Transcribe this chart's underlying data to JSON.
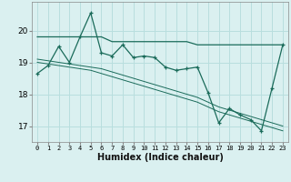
{
  "xlabel": "Humidex (Indice chaleur)",
  "x": [
    0,
    1,
    2,
    3,
    4,
    5,
    6,
    7,
    8,
    9,
    10,
    11,
    12,
    13,
    14,
    15,
    16,
    17,
    18,
    19,
    20,
    21,
    22,
    23
  ],
  "line_main": [
    18.65,
    18.9,
    19.5,
    19.0,
    19.8,
    20.55,
    19.3,
    19.2,
    19.55,
    19.15,
    19.2,
    19.15,
    18.85,
    18.75,
    18.8,
    18.85,
    18.05,
    17.1,
    17.55,
    17.35,
    17.2,
    16.85,
    18.2,
    19.55
  ],
  "line_max": [
    19.8,
    19.8,
    19.8,
    19.8,
    19.8,
    19.8,
    19.8,
    19.65,
    19.65,
    19.65,
    19.65,
    19.65,
    19.65,
    19.65,
    19.65,
    19.55,
    19.55,
    19.55,
    19.55,
    19.55,
    19.55,
    19.55,
    19.55,
    19.55
  ],
  "line_trend1": [
    19.1,
    19.05,
    19.0,
    18.95,
    18.9,
    18.85,
    18.8,
    18.7,
    18.6,
    18.5,
    18.4,
    18.3,
    18.2,
    18.1,
    18.0,
    17.9,
    17.75,
    17.6,
    17.5,
    17.4,
    17.3,
    17.2,
    17.1,
    17.0
  ],
  "line_trend2": [
    19.0,
    18.95,
    18.9,
    18.85,
    18.8,
    18.75,
    18.65,
    18.55,
    18.45,
    18.35,
    18.25,
    18.15,
    18.05,
    17.95,
    17.85,
    17.75,
    17.6,
    17.45,
    17.35,
    17.25,
    17.15,
    17.05,
    16.95,
    16.85
  ],
  "line_color": "#1a6b5a",
  "bg_color": "#daf0f0",
  "grid_color": "#b8dede",
  "ylim": [
    16.5,
    20.9
  ],
  "yticks": [
    17,
    18,
    19,
    20
  ],
  "xticks": [
    0,
    1,
    2,
    3,
    4,
    5,
    6,
    7,
    8,
    9,
    10,
    11,
    12,
    13,
    14,
    15,
    16,
    17,
    18,
    19,
    20,
    21,
    22,
    23
  ]
}
